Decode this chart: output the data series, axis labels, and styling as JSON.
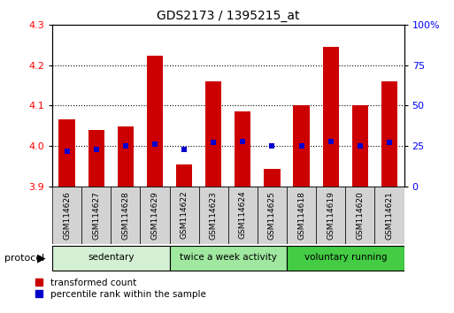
{
  "title": "GDS2173 / 1395215_at",
  "samples": [
    "GSM114626",
    "GSM114627",
    "GSM114628",
    "GSM114629",
    "GSM114622",
    "GSM114623",
    "GSM114624",
    "GSM114625",
    "GSM114618",
    "GSM114619",
    "GSM114620",
    "GSM114621"
  ],
  "bar_tops": [
    4.065,
    4.04,
    4.048,
    4.225,
    3.955,
    4.16,
    4.085,
    3.942,
    4.1,
    4.245,
    4.1,
    4.16
  ],
  "bar_bottom": 3.9,
  "percentile_pct": [
    22,
    23,
    25,
    26,
    23,
    27,
    28,
    25,
    25,
    28,
    25,
    27
  ],
  "groups": [
    {
      "label": "sedentary",
      "start": 0,
      "end": 4,
      "color": "#d4f0d4"
    },
    {
      "label": "twice a week activity",
      "start": 4,
      "end": 8,
      "color": "#a0e8a0"
    },
    {
      "label": "voluntary running",
      "start": 8,
      "end": 12,
      "color": "#44cc44"
    }
  ],
  "ylim_left": [
    3.9,
    4.3
  ],
  "left_yticks": [
    3.9,
    4.0,
    4.1,
    4.2,
    4.3
  ],
  "right_yticks": [
    0,
    25,
    50,
    75,
    100
  ],
  "right_yticklabels": [
    "0",
    "25",
    "50",
    "75",
    "100%"
  ],
  "bar_color": "#cc0000",
  "percentile_color": "#0000cc",
  "protocol_label": "protocol",
  "legend": [
    {
      "color": "#cc0000",
      "label": "transformed count"
    },
    {
      "color": "#0000cc",
      "label": "percentile rank within the sample"
    }
  ],
  "figsize": [
    5.13,
    3.54
  ],
  "dpi": 100
}
